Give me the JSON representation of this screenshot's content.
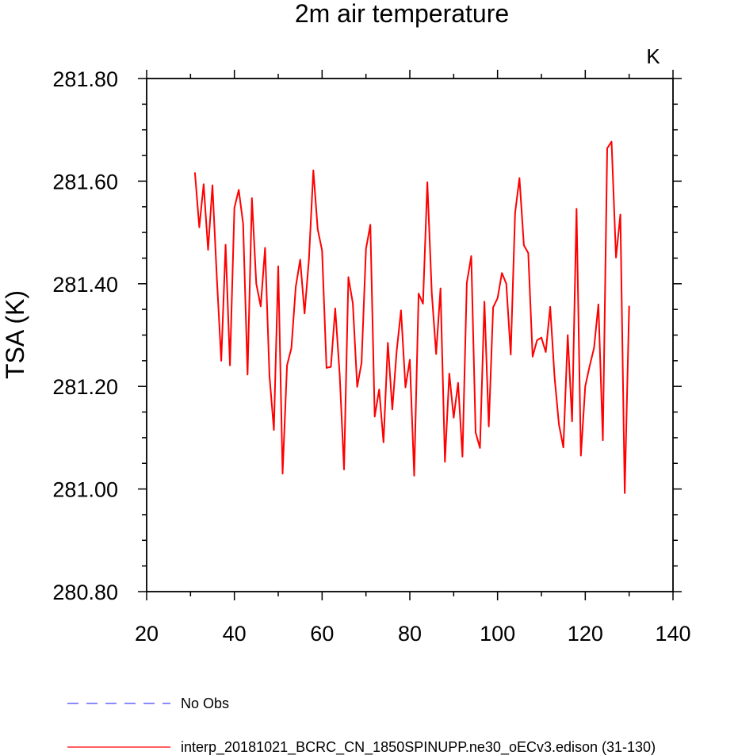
{
  "chart_data": {
    "type": "line",
    "title": "2m air temperature",
    "ylabel": "TSA  (K)",
    "units": "K",
    "xlim": [
      20,
      140
    ],
    "ylim": [
      280.8,
      281.8
    ],
    "xticks": [
      "20",
      "40",
      "60",
      "80",
      "100",
      "120",
      "140"
    ],
    "yticks": [
      "280.80",
      "281.00",
      "281.20",
      "281.40",
      "281.60",
      "281.80"
    ],
    "grid": false,
    "legend_position": "bottom-left",
    "series": [
      {
        "name": "No Obs",
        "color": "#4444ff",
        "dash": true,
        "x": [],
        "y": []
      },
      {
        "name": "interp_20181021_BCRC_CN_1850SPINUPP.ne30_oECv3.edison (31-130)",
        "color": "#ff0000",
        "dash": false,
        "x": [
          31,
          32,
          33,
          34,
          35,
          36,
          37,
          38,
          39,
          40,
          41,
          42,
          43,
          44,
          45,
          46,
          47,
          48,
          49,
          50,
          51,
          52,
          53,
          54,
          55,
          56,
          57,
          58,
          59,
          60,
          61,
          62,
          63,
          64,
          65,
          66,
          67,
          68,
          69,
          70,
          71,
          72,
          73,
          74,
          75,
          76,
          77,
          78,
          79,
          80,
          81,
          82,
          83,
          84,
          85,
          86,
          87,
          88,
          89,
          90,
          91,
          92,
          93,
          94,
          95,
          96,
          97,
          98,
          99,
          100,
          101,
          102,
          103,
          104,
          105,
          106,
          107,
          108,
          109,
          110,
          111,
          112,
          113,
          114,
          115,
          116,
          117,
          118,
          119,
          120,
          121,
          122,
          123,
          124,
          125,
          126,
          127,
          128,
          129,
          130
        ],
        "y": [
          281.617,
          281.51,
          281.594,
          281.466,
          281.592,
          281.413,
          281.25,
          281.476,
          281.241,
          281.548,
          281.583,
          281.517,
          281.223,
          281.567,
          281.4,
          281.356,
          281.47,
          281.222,
          281.115,
          281.434,
          281.03,
          281.241,
          281.275,
          281.394,
          281.447,
          281.342,
          281.447,
          281.621,
          281.506,
          281.465,
          281.236,
          281.238,
          281.352,
          281.224,
          281.038,
          281.413,
          281.362,
          281.199,
          281.246,
          281.468,
          281.515,
          281.141,
          281.194,
          281.091,
          281.285,
          281.155,
          281.269,
          281.348,
          281.198,
          281.252,
          281.026,
          281.381,
          281.361,
          281.598,
          281.382,
          281.263,
          281.391,
          281.053,
          281.225,
          281.139,
          281.207,
          281.063,
          281.402,
          281.454,
          281.11,
          281.08,
          281.365,
          281.122,
          281.354,
          281.372,
          281.421,
          281.4,
          281.262,
          281.538,
          281.606,
          281.475,
          281.46,
          281.258,
          281.29,
          281.295,
          281.267,
          281.355,
          281.218,
          281.126,
          281.081,
          281.3,
          281.132,
          281.546,
          281.065,
          281.2,
          281.24,
          281.275,
          281.36,
          281.095,
          281.664,
          281.677,
          281.451,
          281.535,
          280.992,
          281.357
        ]
      }
    ]
  }
}
